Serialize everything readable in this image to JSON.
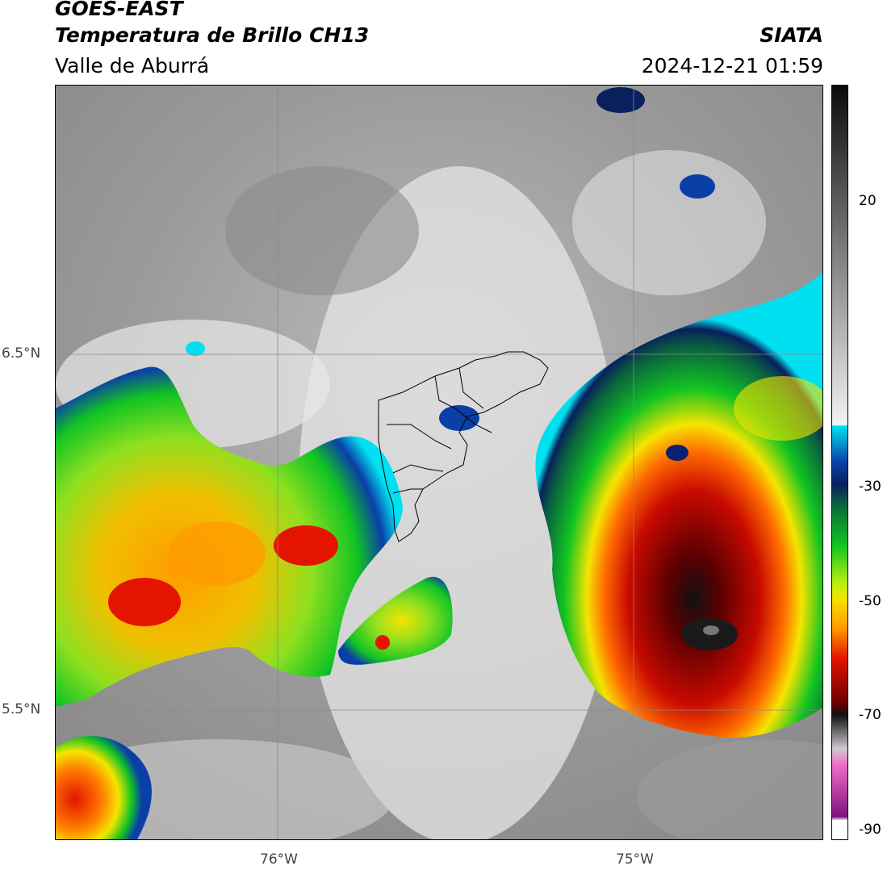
{
  "header": {
    "satellite": "GOES-EAST",
    "product": "Temperatura de Brillo CH13",
    "region": "Valle de Aburrá",
    "agency": "SIATA",
    "timestamp": "2024-12-21 01:59"
  },
  "map": {
    "lat_labels": [
      "6.5°N",
      "5.5°N"
    ],
    "lon_labels": [
      "76°W",
      "75°W"
    ]
  },
  "colorbar": {
    "tick_labels": [
      "20",
      "-30",
      "-50",
      "-70",
      "-90"
    ],
    "colors": {
      "warm_gray_dark": "#7a7a7a",
      "gray_light": "#f2f2f2",
      "cyan": "#00e0f0",
      "blue": "#0a3fa8",
      "dark_blue": "#08205e",
      "green": "#11c422",
      "yellow_green": "#b8f010",
      "yellow": "#f5e400",
      "orange": "#ff9b00",
      "red": "#e41400",
      "dark_red": "#6a0000",
      "black": "#111111",
      "pink": "#f070c8",
      "purple": "#801080"
    }
  }
}
